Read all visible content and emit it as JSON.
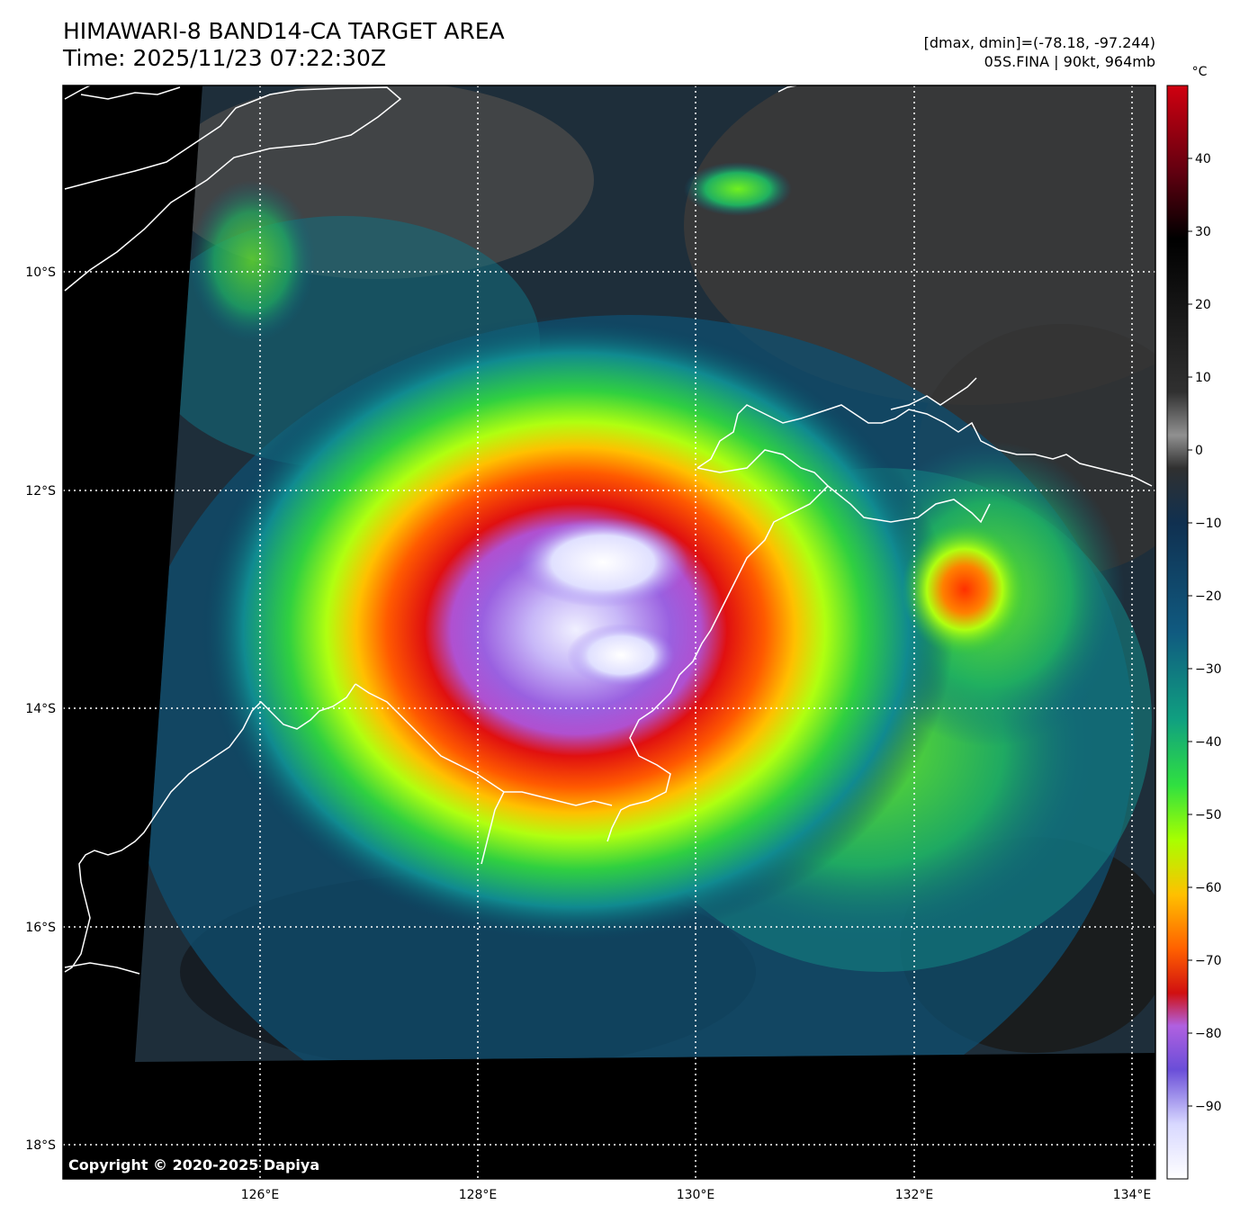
{
  "header": {
    "title": "HIMAWARI-8 BAND14-CA TARGET AREA",
    "time": "Time: 2025/11/23 07:22:30Z",
    "dminmax": "[dmax, dmin]=(-78.18, -97.244)",
    "storm": "05S.FINA | 90kt, 964mb"
  },
  "map": {
    "lat_labels": [
      "10°S",
      "12°S",
      "14°S",
      "16°S",
      "18°S"
    ],
    "lon_labels": [
      "126°E",
      "128°E",
      "130°E",
      "132°E",
      "134°E"
    ],
    "copyright": "Copyright © 2020-2025 Dapiya"
  },
  "colorbar": {
    "unit": "°C",
    "ticks": [
      "40",
      "30",
      "20",
      "10",
      "0",
      "−10",
      "−20",
      "−30",
      "−40",
      "−50",
      "−60",
      "−70",
      "−80",
      "−90"
    ],
    "tick_values": [
      40,
      30,
      20,
      10,
      0,
      -10,
      -20,
      -30,
      -40,
      -50,
      -60,
      -70,
      -80,
      -90
    ],
    "range": [
      -100,
      50
    ],
    "colors": [
      "#ffffff",
      "#d8d8ff",
      "#6a4ed8",
      "#b060e0",
      "#d01010",
      "#ff6000",
      "#ffc000",
      "#a8ff00",
      "#30e040",
      "#10a080",
      "#105a80",
      "#103050",
      "#303030",
      "#909090",
      "#101010",
      "#000000",
      "#600010",
      "#d00010"
    ]
  },
  "colors": {
    "background": "#ffffff",
    "coastline": "#ffffff",
    "gridline": "#ffffff",
    "nodata": "#000000"
  }
}
